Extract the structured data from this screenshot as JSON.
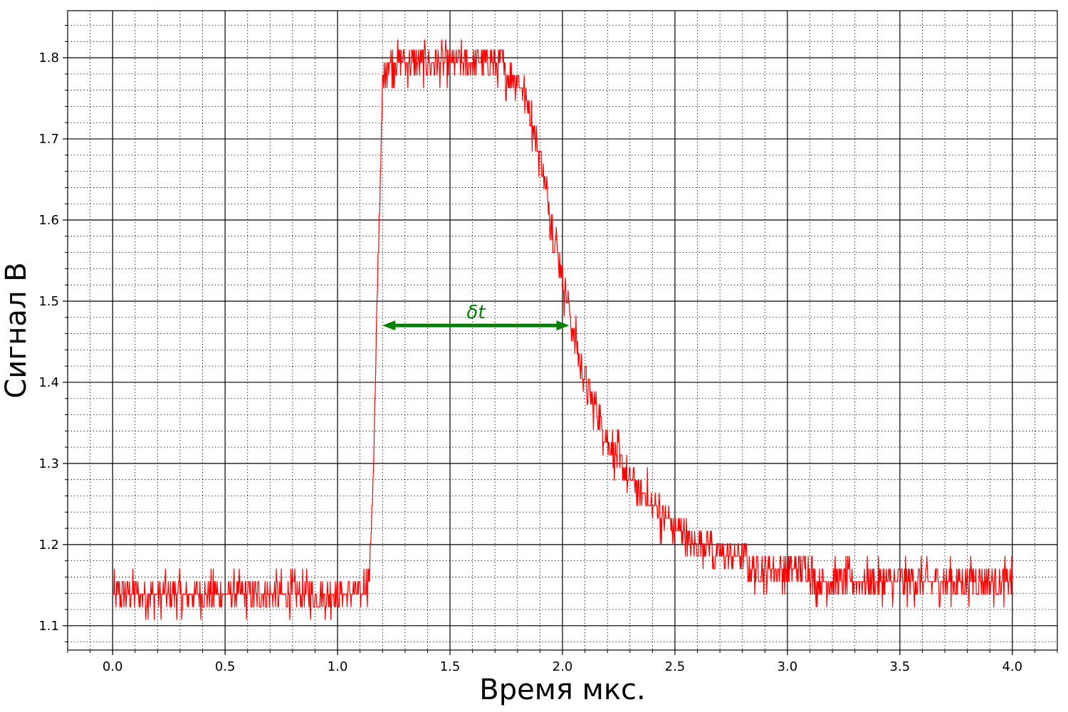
{
  "chart_data": {
    "type": "line",
    "xlabel": "Время мкс.",
    "ylabel": "Сигнал В",
    "xlim": [
      -0.2,
      4.2
    ],
    "ylim": [
      1.07,
      1.858
    ],
    "x_ticks": [
      0.0,
      0.5,
      1.0,
      1.5,
      2.0,
      2.5,
      3.0,
      3.5,
      4.0
    ],
    "x_tick_labels": [
      "0.0",
      "0.5",
      "1.0",
      "1.5",
      "2.0",
      "2.5",
      "3.0",
      "3.5",
      "4.0"
    ],
    "y_ticks": [
      1.1,
      1.2,
      1.3,
      1.4,
      1.5,
      1.6,
      1.7,
      1.8
    ],
    "y_tick_labels": [
      "1.1",
      "1.2",
      "1.3",
      "1.4",
      "1.5",
      "1.6",
      "1.7",
      "1.8"
    ],
    "x_minor_step": 0.1,
    "y_minor_step": 0.02,
    "grid": "major solid, minor dotted",
    "series": [
      {
        "color": "#ff0000",
        "x": [
          0.0,
          0.1,
          0.2,
          0.3,
          0.4,
          0.5,
          0.6,
          0.7,
          0.8,
          0.9,
          1.0,
          1.05,
          1.1,
          1.14,
          1.16,
          1.18,
          1.2,
          1.22,
          1.3,
          1.4,
          1.5,
          1.6,
          1.7,
          1.8,
          1.85,
          1.9,
          1.95,
          2.0,
          2.05,
          2.1,
          2.2,
          2.3,
          2.4,
          2.5,
          2.6,
          2.7,
          2.8,
          2.9,
          3.0,
          3.2,
          3.4,
          3.6,
          3.8,
          4.0
        ],
        "y": [
          1.14,
          1.14,
          1.14,
          1.14,
          1.14,
          1.14,
          1.14,
          1.14,
          1.14,
          1.14,
          1.14,
          1.14,
          1.145,
          1.15,
          1.3,
          1.55,
          1.76,
          1.79,
          1.79,
          1.79,
          1.79,
          1.79,
          1.79,
          1.78,
          1.74,
          1.68,
          1.6,
          1.53,
          1.46,
          1.4,
          1.33,
          1.28,
          1.25,
          1.22,
          1.2,
          1.19,
          1.18,
          1.17,
          1.165,
          1.16,
          1.155,
          1.15,
          1.15,
          1.15
        ],
        "noise_amplitude": 0.02
      }
    ],
    "annotation": {
      "label": "δt",
      "x_start": 1.2,
      "x_end": 2.03,
      "y": 1.47,
      "color": "#008000"
    }
  }
}
